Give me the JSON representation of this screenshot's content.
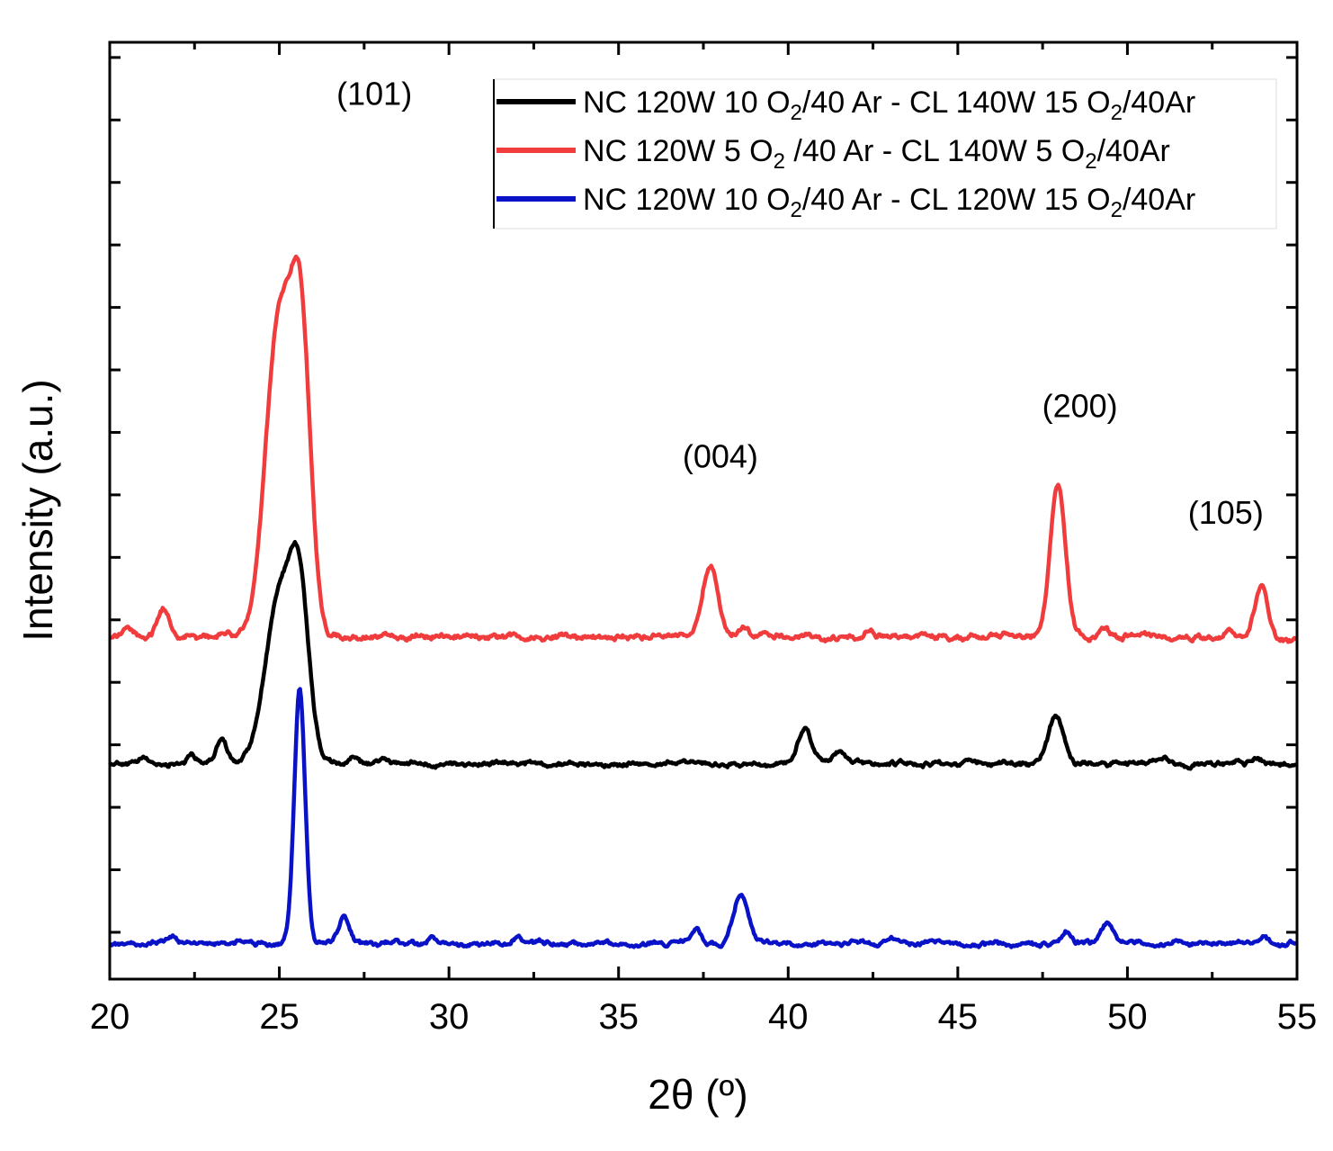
{
  "chart_data": {
    "type": "line",
    "title": "",
    "xlabel": "2θ  (º)",
    "ylabel": "Intensity (a.u.)",
    "xlim": [
      20,
      55
    ],
    "ylim": [
      0,
      100
    ],
    "x_ticks": [
      20,
      25,
      30,
      35,
      40,
      45,
      50,
      55
    ],
    "y_tick_labels": "none",
    "grid": false,
    "legend_position": "top-right",
    "series": [
      {
        "name": "NC 120W 10 O2/40 Ar -  CL 140W 15 O2/40Ar",
        "legend_parts": {
          "a": "NC 120W 10 O",
          "sub1": "2",
          "b": "/40 Ar -  CL 140W 15 O",
          "sub2": "2",
          "c": "/40Ar"
        },
        "color": "#000000",
        "baseline": 23.0,
        "noise": 0.5,
        "peaks": [
          {
            "x": 21.0,
            "h": 0.6,
            "w": 0.12
          },
          {
            "x": 22.4,
            "h": 0.8,
            "w": 0.12
          },
          {
            "x": 23.3,
            "h": 2.6,
            "w": 0.15
          },
          {
            "x": 25.0,
            "h": 17.5,
            "w": 0.42
          },
          {
            "x": 25.6,
            "h": 16.0,
            "w": 0.28
          },
          {
            "x": 27.2,
            "h": 0.7,
            "w": 0.14
          },
          {
            "x": 28.0,
            "h": 0.5,
            "w": 0.12
          },
          {
            "x": 40.5,
            "h": 3.8,
            "w": 0.2
          },
          {
            "x": 41.5,
            "h": 1.3,
            "w": 0.17
          },
          {
            "x": 47.9,
            "h": 5.2,
            "w": 0.22
          },
          {
            "x": 51.1,
            "h": 0.5,
            "w": 0.12
          },
          {
            "x": 53.8,
            "h": 0.6,
            "w": 0.14
          }
        ]
      },
      {
        "name": "NC 120W   5 O2 /40 Ar - CL 140W  5 O2/40Ar",
        "legend_parts": {
          "a": "NC 120W   5 O",
          "sub1": "2",
          "b": " /40 Ar - CL 140W  5 O",
          "sub2": "2",
          "c": "/40Ar"
        },
        "color": "#f03c3c",
        "baseline": 36.5,
        "noise": 0.6,
        "peaks": [
          {
            "x": 20.5,
            "h": 1.1,
            "w": 0.15
          },
          {
            "x": 21.6,
            "h": 3.0,
            "w": 0.18
          },
          {
            "x": 23.4,
            "h": 0.8,
            "w": 0.14
          },
          {
            "x": 25.0,
            "h": 34.0,
            "w": 0.4
          },
          {
            "x": 25.65,
            "h": 29.0,
            "w": 0.28
          },
          {
            "x": 37.7,
            "h": 7.6,
            "w": 0.22
          },
          {
            "x": 38.7,
            "h": 0.9,
            "w": 0.14
          },
          {
            "x": 42.4,
            "h": 0.6,
            "w": 0.14
          },
          {
            "x": 46.5,
            "h": 0.6,
            "w": 0.14
          },
          {
            "x": 47.95,
            "h": 16.0,
            "w": 0.22
          },
          {
            "x": 49.3,
            "h": 1.0,
            "w": 0.15
          },
          {
            "x": 53.0,
            "h": 0.6,
            "w": 0.12
          },
          {
            "x": 53.95,
            "h": 5.4,
            "w": 0.18
          }
        ]
      },
      {
        "name": "NC 120W 10 O2/40 Ar -  CL 120W 15 O2/40Ar",
        "legend_parts": {
          "a": "NC 120W 10 O",
          "sub1": "2",
          "b": "/40 Ar -  CL 120W 15 O",
          "sub2": "2",
          "c": "/40Ar"
        },
        "color": "#0a12c8",
        "baseline": 3.8,
        "noise": 0.5,
        "peaks": [
          {
            "x": 21.8,
            "h": 0.8,
            "w": 0.14
          },
          {
            "x": 25.6,
            "h": 27.0,
            "w": 0.16
          },
          {
            "x": 26.9,
            "h": 2.6,
            "w": 0.17
          },
          {
            "x": 29.5,
            "h": 0.6,
            "w": 0.12
          },
          {
            "x": 32.0,
            "h": 0.6,
            "w": 0.12
          },
          {
            "x": 37.3,
            "h": 1.8,
            "w": 0.14
          },
          {
            "x": 38.6,
            "h": 5.2,
            "w": 0.22
          },
          {
            "x": 43.0,
            "h": 0.5,
            "w": 0.12
          },
          {
            "x": 48.2,
            "h": 1.4,
            "w": 0.14
          },
          {
            "x": 49.4,
            "h": 2.3,
            "w": 0.18
          },
          {
            "x": 51.5,
            "h": 0.5,
            "w": 0.12
          },
          {
            "x": 54.0,
            "h": 0.7,
            "w": 0.12
          }
        ]
      }
    ],
    "annotations": [
      {
        "text": "(101)",
        "x": 27.8,
        "y": 93.3
      },
      {
        "text": "(004)",
        "x": 38.0,
        "y": 54.6
      },
      {
        "text": "(200)",
        "x": 48.6,
        "y": 60.0
      },
      {
        "text": "(105)",
        "x": 52.9,
        "y": 48.6
      }
    ]
  }
}
